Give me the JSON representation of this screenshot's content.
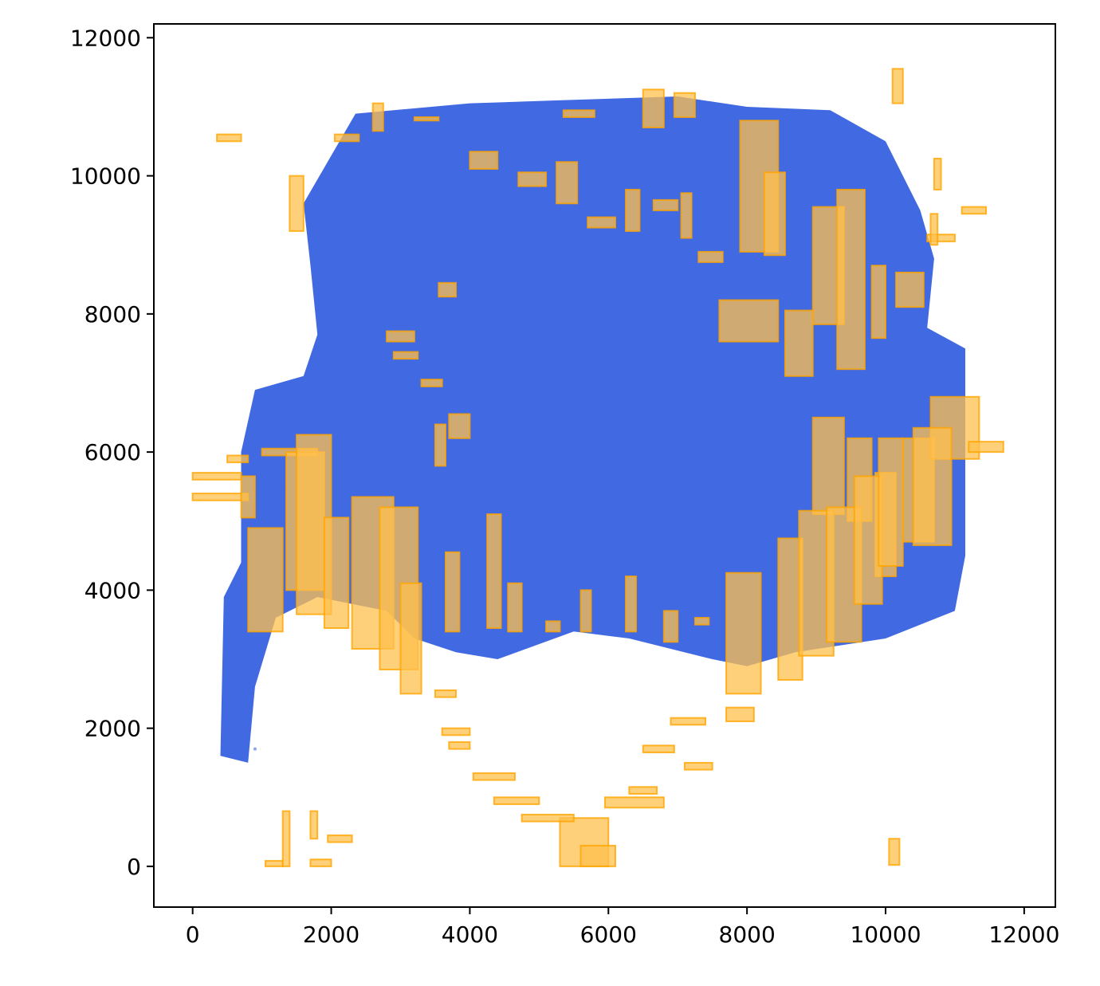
{
  "chart_data": {
    "type": "scatter",
    "title": "",
    "xlabel": "",
    "ylabel": "",
    "xlim": [
      -560,
      12450
    ],
    "ylim": [
      -590,
      12200
    ],
    "grid": false,
    "xticks": [
      0,
      2000,
      4000,
      6000,
      8000,
      10000,
      12000
    ],
    "yticks": [
      0,
      2000,
      4000,
      6000,
      8000,
      10000,
      12000
    ],
    "xtick_labels": [
      "0",
      "2000",
      "4000",
      "6000",
      "8000",
      "10000",
      "12000"
    ],
    "ytick_labels": [
      "0",
      "2000",
      "4000",
      "6000",
      "8000",
      "10000",
      "12000"
    ],
    "colors": {
      "points": "#4169e1",
      "boxes": "#ffa500",
      "box_fill": "#ffc04d"
    },
    "point_cloud_outline": [
      [
        2350,
        10900
      ],
      [
        4000,
        11050
      ],
      [
        5500,
        11100
      ],
      [
        7000,
        11150
      ],
      [
        8000,
        11000
      ],
      [
        9200,
        10950
      ],
      [
        10000,
        10500
      ],
      [
        10500,
        9500
      ],
      [
        10700,
        8800
      ],
      [
        10600,
        7800
      ],
      [
        11150,
        7500
      ],
      [
        11150,
        5500
      ],
      [
        11150,
        4500
      ],
      [
        11000,
        3700
      ],
      [
        10000,
        3300
      ],
      [
        8700,
        3100
      ],
      [
        8000,
        2900
      ],
      [
        7500,
        3000
      ],
      [
        6300,
        3300
      ],
      [
        5500,
        3400
      ],
      [
        4400,
        3000
      ],
      [
        3800,
        3100
      ],
      [
        3200,
        3300
      ],
      [
        2800,
        3700
      ],
      [
        1800,
        3900
      ],
      [
        1200,
        3600
      ],
      [
        900,
        2600
      ],
      [
        800,
        1500
      ],
      [
        400,
        1600
      ],
      [
        450,
        3900
      ],
      [
        700,
        4400
      ],
      [
        700,
        6000
      ],
      [
        900,
        6900
      ],
      [
        1600,
        7100
      ],
      [
        1800,
        7700
      ],
      [
        1700,
        8700
      ],
      [
        1600,
        9600
      ],
      [
        2350,
        10900
      ]
    ],
    "boxes": [
      [
        7900,
        8900,
        8450,
        10800
      ],
      [
        8250,
        8850,
        8550,
        10050
      ],
      [
        8950,
        7850,
        9400,
        9550
      ],
      [
        9300,
        7200,
        9700,
        9800
      ],
      [
        9800,
        7650,
        10000,
        8700
      ],
      [
        10150,
        8100,
        10550,
        8600
      ],
      [
        10600,
        9050,
        11000,
        9150
      ],
      [
        11100,
        9450,
        11450,
        9550
      ],
      [
        1400,
        9200,
        1600,
        10000
      ],
      [
        2050,
        10500,
        2400,
        10600
      ],
      [
        7600,
        7600,
        8450,
        8200
      ],
      [
        8550,
        7100,
        8950,
        8050
      ],
      [
        8950,
        5100,
        9400,
        6500
      ],
      [
        9450,
        5000,
        9800,
        6200
      ],
      [
        9850,
        4200,
        10150,
        5700
      ],
      [
        10250,
        4700,
        10700,
        6200
      ],
      [
        10650,
        5900,
        11350,
        6800
      ],
      [
        11200,
        6000,
        11700,
        6150
      ],
      [
        5300,
        0,
        6000,
        700
      ],
      [
        5600,
        0,
        6100,
        300
      ],
      [
        1050,
        0,
        1300,
        80
      ],
      [
        1300,
        0,
        1400,
        800
      ],
      [
        1700,
        0,
        2000,
        100
      ],
      [
        1950,
        350,
        2300,
        450
      ],
      [
        1700,
        400,
        1800,
        800
      ],
      [
        10050,
        20,
        10200,
        400
      ],
      [
        10100,
        11050,
        10250,
        11550
      ],
      [
        10700,
        9800,
        10800,
        10250
      ],
      [
        10650,
        9000,
        10750,
        9450
      ],
      [
        350,
        10500,
        700,
        10600
      ],
      [
        500,
        5850,
        800,
        5950
      ],
      [
        0,
        5600,
        700,
        5700
      ],
      [
        0,
        5300,
        800,
        5400
      ],
      [
        700,
        5050,
        900,
        5650
      ],
      [
        1000,
        5950,
        1800,
        6050
      ],
      [
        800,
        3400,
        1300,
        4900
      ],
      [
        1350,
        4000,
        1900,
        6000
      ],
      [
        1500,
        3650,
        2000,
        6250
      ],
      [
        1900,
        3450,
        2250,
        5050
      ],
      [
        2300,
        3150,
        2900,
        5350
      ],
      [
        2700,
        2850,
        3250,
        5200
      ],
      [
        3000,
        2500,
        3300,
        4100
      ],
      [
        3500,
        2450,
        3800,
        2550
      ],
      [
        3600,
        1900,
        4000,
        2000
      ],
      [
        3700,
        1700,
        4000,
        1800
      ],
      [
        4050,
        1250,
        4650,
        1350
      ],
      [
        4350,
        900,
        5000,
        1000
      ],
      [
        4750,
        650,
        5500,
        750
      ],
      [
        5950,
        850,
        6800,
        1000
      ],
      [
        6300,
        1050,
        6700,
        1150
      ],
      [
        6500,
        1650,
        6950,
        1750
      ],
      [
        6900,
        2050,
        7400,
        2150
      ],
      [
        7100,
        1400,
        7500,
        1500
      ],
      [
        7700,
        2100,
        8100,
        2300
      ],
      [
        7700,
        2500,
        8200,
        4250
      ],
      [
        8450,
        2700,
        8800,
        4750
      ],
      [
        8750,
        3050,
        9250,
        5150
      ],
      [
        9150,
        3250,
        9650,
        5200
      ],
      [
        9550,
        3800,
        9950,
        5650
      ],
      [
        9900,
        4350,
        10250,
        6200
      ],
      [
        10400,
        4650,
        10950,
        6350
      ],
      [
        2600,
        10650,
        2750,
        11050
      ],
      [
        3200,
        10800,
        3550,
        10850
      ],
      [
        5350,
        10850,
        5800,
        10950
      ],
      [
        6500,
        10700,
        6800,
        11250
      ],
      [
        6950,
        10850,
        7250,
        11200
      ],
      [
        3700,
        6200,
        4000,
        6550
      ],
      [
        3550,
        8250,
        3800,
        8450
      ],
      [
        2800,
        7600,
        3200,
        7750
      ],
      [
        2900,
        7350,
        3250,
        7450
      ],
      [
        3300,
        6950,
        3600,
        7050
      ],
      [
        3500,
        5800,
        3650,
        6400
      ],
      [
        3650,
        3400,
        3850,
        4550
      ],
      [
        4250,
        3450,
        4450,
        5100
      ],
      [
        4550,
        3400,
        4750,
        4100
      ],
      [
        5100,
        3400,
        5300,
        3550
      ],
      [
        5600,
        3400,
        5750,
        4000
      ],
      [
        6250,
        3400,
        6400,
        4200
      ],
      [
        6800,
        3250,
        7000,
        3700
      ],
      [
        7250,
        3500,
        7450,
        3600
      ],
      [
        4000,
        10100,
        4400,
        10350
      ],
      [
        4700,
        9850,
        5100,
        10050
      ],
      [
        5250,
        9600,
        5550,
        10200
      ],
      [
        5700,
        9250,
        6100,
        9400
      ],
      [
        6250,
        9200,
        6450,
        9800
      ],
      [
        6650,
        9500,
        7000,
        9650
      ],
      [
        7050,
        9100,
        7200,
        9750
      ],
      [
        7300,
        8750,
        7650,
        8900
      ]
    ],
    "points_sample": [
      [
        4200,
        10800
      ],
      [
        5200,
        10700
      ],
      [
        6300,
        10500
      ],
      [
        7400,
        10300
      ],
      [
        3200,
        9800
      ],
      [
        4600,
        9600
      ],
      [
        5800,
        9400
      ],
      [
        6900,
        9200
      ],
      [
        8000,
        9000
      ],
      [
        2700,
        8900
      ],
      [
        3900,
        8700
      ],
      [
        5100,
        8600
      ],
      [
        6200,
        8400
      ],
      [
        7300,
        8200
      ],
      [
        8500,
        8000
      ],
      [
        9600,
        7800
      ],
      [
        2400,
        7900
      ],
      [
        3500,
        7600
      ],
      [
        4700,
        7400
      ],
      [
        5900,
        7300
      ],
      [
        7000,
        7100
      ],
      [
        8200,
        6900
      ],
      [
        9300,
        6700
      ],
      [
        10400,
        6600
      ],
      [
        1900,
        6600
      ],
      [
        3000,
        6400
      ],
      [
        4200,
        6200
      ],
      [
        5400,
        6000
      ],
      [
        6600,
        5900
      ],
      [
        7800,
        5700
      ],
      [
        9000,
        5500
      ],
      [
        10200,
        5300
      ],
      [
        1300,
        5500
      ],
      [
        2500,
        5200
      ],
      [
        3700,
        5000
      ],
      [
        4900,
        4800
      ],
      [
        6100,
        4600
      ],
      [
        7300,
        4400
      ],
      [
        8500,
        4200
      ],
      [
        9700,
        4000
      ],
      [
        10800,
        4800
      ],
      [
        1000,
        4400
      ],
      [
        2200,
        4100
      ],
      [
        3400,
        3900
      ],
      [
        4600,
        3700
      ],
      [
        5800,
        3500
      ],
      [
        7000,
        3400
      ],
      [
        8200,
        3300
      ],
      [
        9400,
        3600
      ],
      [
        10600,
        3900
      ],
      [
        600,
        3000
      ],
      [
        700,
        2200
      ],
      [
        600,
        1800
      ],
      [
        900,
        1700
      ],
      [
        11100,
        7300
      ],
      [
        11000,
        5000
      ]
    ]
  }
}
